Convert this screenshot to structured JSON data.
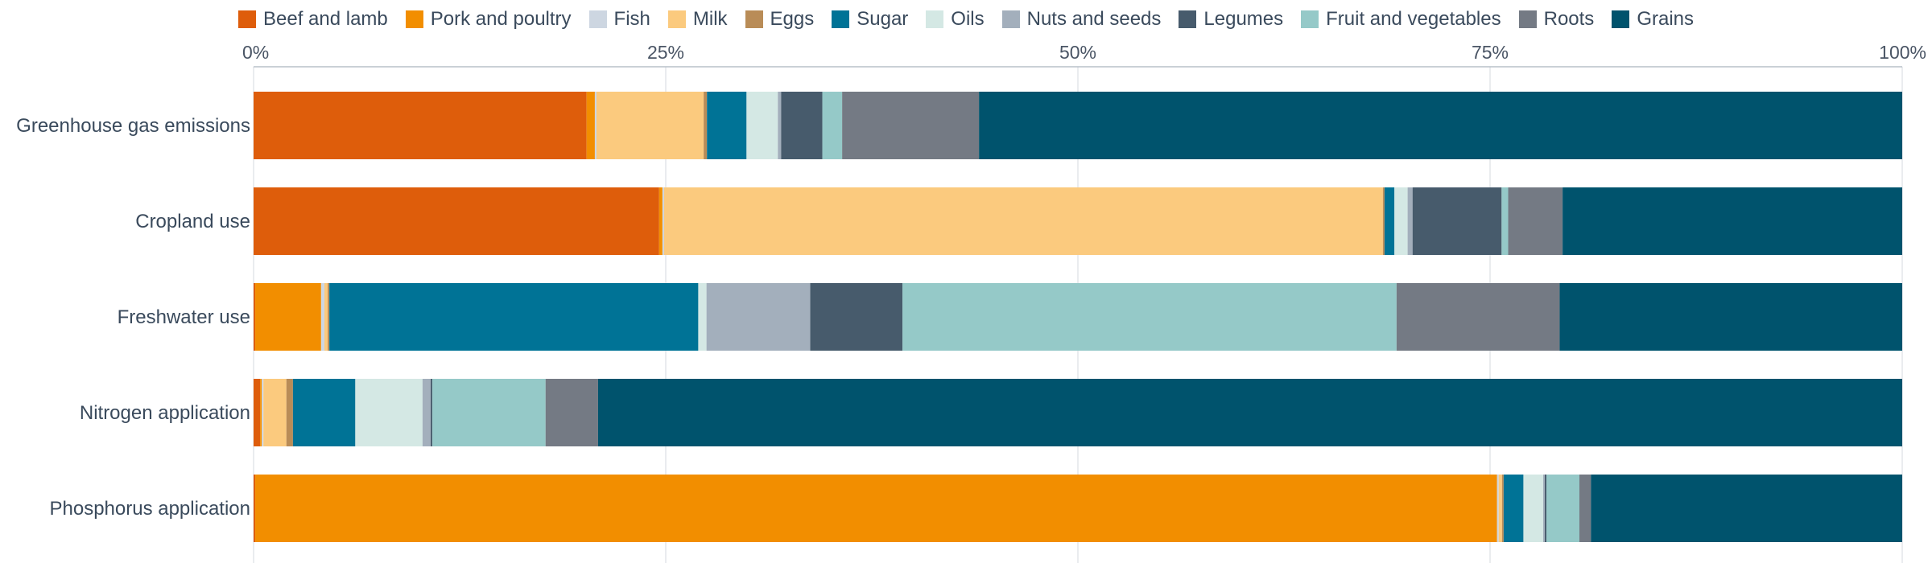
{
  "chart_data": {
    "type": "bar",
    "orientation": "horizontal",
    "stacked": true,
    "normalized": true,
    "title": "",
    "xlabel": "",
    "ylabel": "",
    "xlim": [
      0,
      100
    ],
    "x_ticks": [
      "0%",
      "25%",
      "50%",
      "75%",
      "100%"
    ],
    "axis_position": "top",
    "legend_position": "top",
    "grid": true,
    "categories": [
      "Greenhouse gas emissions",
      "Cropland use",
      "Freshwater use",
      "Nitrogen application",
      "Phosphorus application"
    ],
    "series": [
      {
        "name": "Beef and lamb",
        "color": "#de5d0b",
        "values": [
          20.2,
          24.6,
          0.1,
          0.4,
          0.1
        ]
      },
      {
        "name": "Pork and poultry",
        "color": "#f28e00",
        "values": [
          0.5,
          0.2,
          4.0,
          0.1,
          75.4
        ]
      },
      {
        "name": "Fish",
        "color": "#cdd6e1",
        "values": [
          0.1,
          0.1,
          0.2,
          0.1,
          0.1
        ]
      },
      {
        "name": "Milk",
        "color": "#fbca7e",
        "values": [
          6.5,
          43.6,
          0.2,
          1.4,
          0.2
        ]
      },
      {
        "name": "Eggs",
        "color": "#b98c57",
        "values": [
          0.2,
          0.1,
          0.1,
          0.4,
          0.1
        ]
      },
      {
        "name": "Sugar",
        "color": "#007396",
        "values": [
          2.4,
          0.6,
          22.4,
          3.8,
          1.2
        ]
      },
      {
        "name": "Oils",
        "color": "#d4e8e4",
        "values": [
          1.9,
          0.8,
          0.5,
          4.1,
          1.2
        ]
      },
      {
        "name": "Nuts and seeds",
        "color": "#a3afbc",
        "values": [
          0.2,
          0.3,
          6.3,
          0.5,
          0.1
        ]
      },
      {
        "name": "Legumes",
        "color": "#475b6c",
        "values": [
          2.5,
          5.4,
          5.6,
          0.1,
          0.1
        ]
      },
      {
        "name": "Fruit and vegetables",
        "color": "#95c9c8",
        "values": [
          1.2,
          0.4,
          30.0,
          6.9,
          2.0
        ]
      },
      {
        "name": "Roots",
        "color": "#747a84",
        "values": [
          8.3,
          3.3,
          9.9,
          3.2,
          0.7
        ]
      },
      {
        "name": "Grains",
        "color": "#00536d",
        "values": [
          56.0,
          20.6,
          20.8,
          79.5,
          18.9
        ]
      }
    ]
  }
}
